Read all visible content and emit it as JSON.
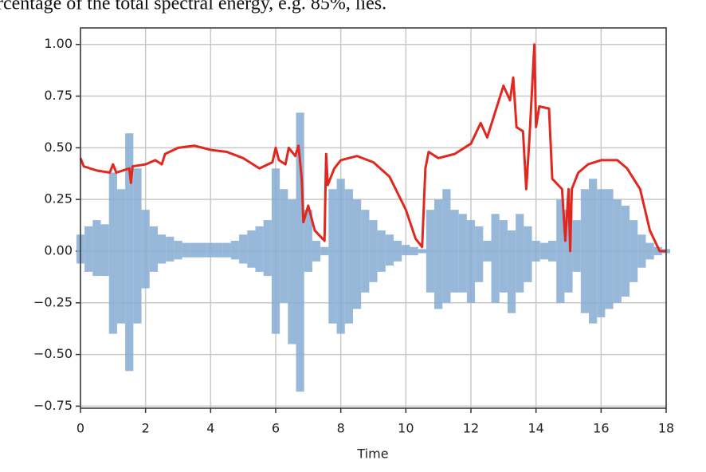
{
  "caption": "rcentage of the total spectral energy, e.g. 85%, lies.",
  "chart_data": {
    "type": "line",
    "xlabel": "Time",
    "grid": true,
    "xlim": [
      0,
      18
    ],
    "xticks": [
      0,
      2,
      4,
      6,
      8,
      10,
      12,
      14,
      16,
      18
    ],
    "ylim": [
      -0.76,
      1.08
    ],
    "yticks": [
      {
        "value": -0.75,
        "label": "−0.75"
      },
      {
        "value": -0.5,
        "label": "−0.50"
      },
      {
        "value": -0.25,
        "label": "−0.25"
      },
      {
        "value": 0,
        "label": "0.00"
      },
      0.25,
      {
        "value": 0.5,
        "label": "0.50"
      },
      0.75,
      {
        "value": 1,
        "label": "1.00"
      }
    ],
    "series": [
      {
        "type": "area",
        "color": "#86acd4",
        "x": [
          0,
          0.25,
          0.5,
          0.75,
          1,
          1.25,
          1.5,
          1.75,
          2,
          2.25,
          2.5,
          2.75,
          3,
          3.25,
          3.5,
          3.75,
          4,
          4.25,
          4.5,
          4.75,
          5,
          5.25,
          5.5,
          5.75,
          6,
          6.25,
          6.5,
          6.75,
          7,
          7.25,
          7.5,
          7.75,
          8,
          8.25,
          8.5,
          8.75,
          9,
          9.25,
          9.5,
          9.75,
          10,
          10.25,
          10.5,
          10.75,
          11,
          11.25,
          11.5,
          11.75,
          12,
          12.25,
          12.5,
          12.75,
          13,
          13.25,
          13.5,
          13.75,
          14,
          14.25,
          14.5,
          14.75,
          15,
          15.25,
          15.5,
          15.75,
          16,
          16.25,
          16.5,
          16.75,
          17,
          17.25,
          17.5,
          17.75,
          18
        ],
        "values": [
          0.08,
          0.12,
          0.15,
          0.13,
          0.38,
          0.3,
          0.57,
          0.4,
          0.2,
          0.12,
          0.08,
          0.07,
          0.05,
          0.04,
          0.04,
          0.04,
          0.04,
          0.04,
          0.04,
          0.05,
          0.08,
          0.1,
          0.12,
          0.15,
          0.4,
          0.3,
          0.25,
          0.67,
          0.2,
          0.05,
          0.02,
          0.3,
          0.35,
          0.3,
          0.25,
          0.2,
          0.15,
          0.1,
          0.08,
          0.05,
          0.03,
          0.02,
          0.01,
          0.2,
          0.25,
          0.3,
          0.2,
          0.18,
          0.15,
          0.12,
          0.05,
          0.18,
          0.15,
          0.1,
          0.18,
          0.12,
          0.05,
          0.04,
          0.05,
          0.25,
          0.2,
          0.15,
          0.3,
          0.35,
          0.3,
          0.3,
          0.25,
          0.22,
          0.15,
          0.08,
          0.04,
          0.02,
          0.01
        ],
        "lower": [
          -0.06,
          -0.1,
          -0.12,
          -0.12,
          -0.4,
          -0.35,
          -0.58,
          -0.35,
          -0.18,
          -0.1,
          -0.06,
          -0.05,
          -0.04,
          -0.03,
          -0.03,
          -0.03,
          -0.03,
          -0.03,
          -0.03,
          -0.04,
          -0.06,
          -0.08,
          -0.1,
          -0.12,
          -0.4,
          -0.25,
          -0.45,
          -0.68,
          -0.1,
          -0.05,
          -0.02,
          -0.35,
          -0.4,
          -0.35,
          -0.28,
          -0.2,
          -0.15,
          -0.1,
          -0.07,
          -0.05,
          -0.02,
          -0.02,
          -0.01,
          -0.2,
          -0.28,
          -0.25,
          -0.2,
          -0.2,
          -0.25,
          -0.15,
          -0.05,
          -0.25,
          -0.2,
          -0.3,
          -0.2,
          -0.15,
          -0.05,
          -0.04,
          -0.05,
          -0.25,
          -0.2,
          -0.1,
          -0.3,
          -0.35,
          -0.32,
          -0.28,
          -0.25,
          -0.22,
          -0.15,
          -0.08,
          -0.04,
          -0.02,
          -0.01
        ]
      },
      {
        "type": "line",
        "color": "#e0281e",
        "x": [
          0,
          0.1,
          0.5,
          0.9,
          1,
          1.1,
          1.5,
          1.55,
          1.6,
          2,
          2.3,
          2.5,
          2.6,
          3,
          3.5,
          4,
          4.5,
          5,
          5.5,
          5.9,
          6,
          6.1,
          6.3,
          6.4,
          6.6,
          6.7,
          6.8,
          6.85,
          7,
          7.2,
          7.5,
          7.55,
          7.6,
          7.8,
          8,
          8.5,
          9,
          9.5,
          10,
          10.3,
          10.5,
          10.6,
          10.7,
          11,
          11.5,
          12,
          12.3,
          12.5,
          12.8,
          13,
          13.2,
          13.3,
          13.4,
          13.6,
          13.7,
          13.8,
          13.95,
          14,
          14.1,
          14.4,
          14.5,
          14.8,
          14.9,
          15,
          15.05,
          15.1,
          15.3,
          15.6,
          16,
          16.5,
          16.8,
          17.2,
          17.5,
          17.8,
          18
        ],
        "values": [
          0.45,
          0.41,
          0.39,
          0.38,
          0.42,
          0.38,
          0.4,
          0.33,
          0.41,
          0.42,
          0.44,
          0.42,
          0.47,
          0.5,
          0.51,
          0.49,
          0.48,
          0.45,
          0.4,
          0.43,
          0.5,
          0.44,
          0.42,
          0.5,
          0.46,
          0.51,
          0.35,
          0.14,
          0.22,
          0.1,
          0.05,
          0.47,
          0.32,
          0.4,
          0.44,
          0.46,
          0.43,
          0.36,
          0.2,
          0.06,
          0.02,
          0.4,
          0.48,
          0.45,
          0.47,
          0.52,
          0.62,
          0.55,
          0.7,
          0.8,
          0.73,
          0.84,
          0.6,
          0.58,
          0.3,
          0.55,
          1,
          0.6,
          0.7,
          0.69,
          0.35,
          0.3,
          0.05,
          0.3,
          0,
          0.3,
          0.38,
          0.42,
          0.44,
          0.44,
          0.4,
          0.3,
          0.1,
          0,
          0
        ]
      }
    ]
  }
}
